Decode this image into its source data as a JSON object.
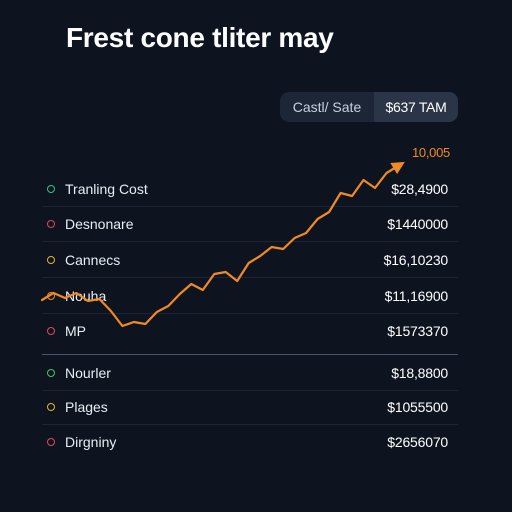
{
  "title": "Frest cone tliter may",
  "toggle": {
    "label": "Castl/ Sate",
    "value": "$637 TAM"
  },
  "peak_label": "10,005",
  "rows": [
    {
      "label": "Tranling Cost",
      "value": "$28,4900",
      "color": "#2fc48a"
    },
    {
      "label": "Desnonare",
      "value": "$1440000",
      "color": "#e0485a"
    },
    {
      "label": "Cannecs",
      "value": "$16,10230",
      "color": "#e6b52e"
    },
    {
      "label": "Nouha",
      "value": "$11,16900",
      "color": "#f08a24"
    },
    {
      "label": "MP",
      "value": "$1573370",
      "color": "#e0485a"
    },
    {
      "label": "Nourler",
      "value": "$18,8800",
      "color": "#3ec95a"
    },
    {
      "label": "Plages",
      "value": "$1055500",
      "color": "#e6b52e"
    },
    {
      "label": "Dirgniny",
      "value": "$2656070",
      "color": "#e0485a"
    }
  ],
  "chart_data": {
    "type": "line",
    "title": "Frest cone tliter may",
    "x": [
      0,
      1,
      2,
      3,
      4,
      5,
      6,
      7,
      8,
      9,
      10,
      11,
      12,
      13,
      14,
      15,
      16,
      17,
      18,
      19,
      20,
      21,
      22,
      23,
      24,
      25,
      26,
      27,
      28,
      29,
      30,
      31
    ],
    "y": [
      3.2,
      3.9,
      3.4,
      3.9,
      3.1,
      3.3,
      2.1,
      0.6,
      1.0,
      0.8,
      2.0,
      2.6,
      3.8,
      4.8,
      4.2,
      5.8,
      6.0,
      5.1,
      6.9,
      7.6,
      8.5,
      8.3,
      9.4,
      9.9,
      11.3,
      12.0,
      13.9,
      13.6,
      15.2,
      14.4,
      15.9,
      16.6
    ],
    "ylim": [
      0,
      17
    ],
    "series_color": "#f08a24",
    "end_marker": "arrow",
    "grid": false,
    "legend": "none"
  }
}
